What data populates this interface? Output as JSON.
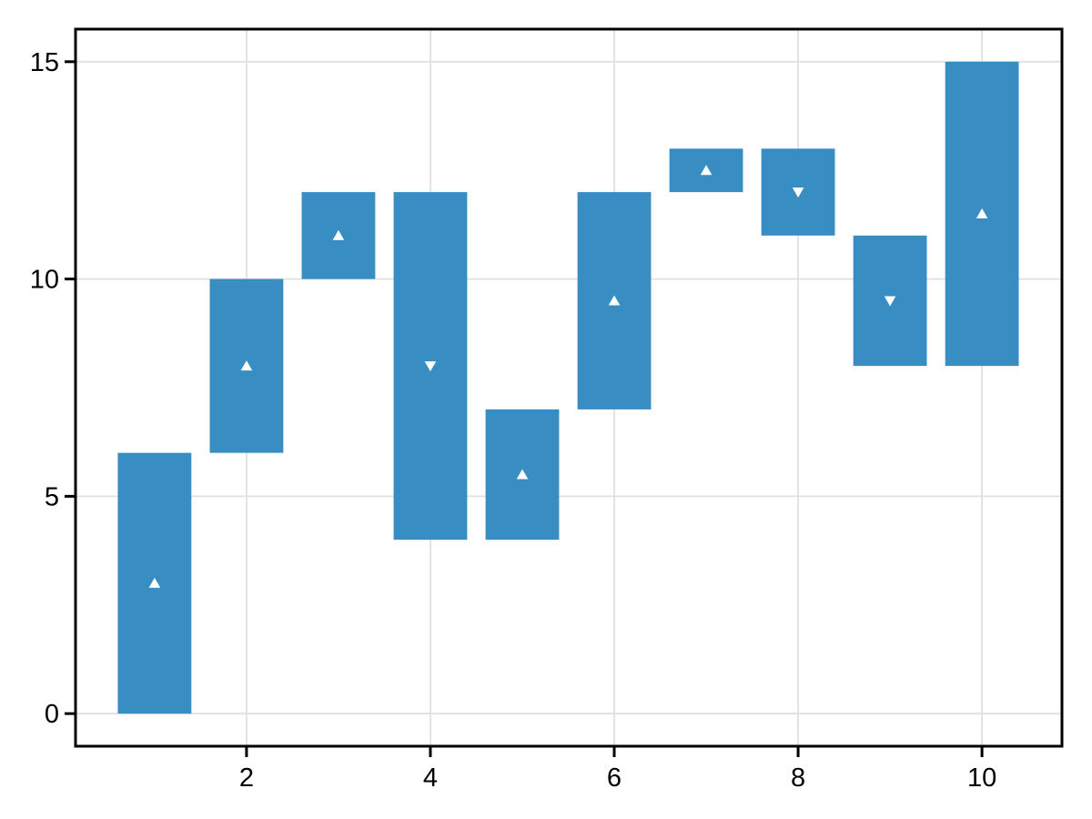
{
  "chart_data": {
    "type": "bar",
    "subtype": "floating-range-bars-with-direction-markers",
    "title": "",
    "xlabel": "",
    "ylabel": "",
    "bars": [
      {
        "x": 1,
        "low": 0,
        "high": 6,
        "marker_value": 3,
        "marker_direction": "up"
      },
      {
        "x": 2,
        "low": 6,
        "high": 10,
        "marker_value": 8,
        "marker_direction": "up"
      },
      {
        "x": 3,
        "low": 10,
        "high": 12,
        "marker_value": 11,
        "marker_direction": "up"
      },
      {
        "x": 4,
        "low": 4,
        "high": 12,
        "marker_value": 8,
        "marker_direction": "down"
      },
      {
        "x": 5,
        "low": 4,
        "high": 7,
        "marker_value": 5.5,
        "marker_direction": "up"
      },
      {
        "x": 6,
        "low": 7,
        "high": 12,
        "marker_value": 9.5,
        "marker_direction": "up"
      },
      {
        "x": 7,
        "low": 12,
        "high": 13,
        "marker_value": 12.5,
        "marker_direction": "up"
      },
      {
        "x": 8,
        "low": 11,
        "high": 13,
        "marker_value": 12,
        "marker_direction": "down"
      },
      {
        "x": 9,
        "low": 8,
        "high": 11,
        "marker_value": 9.5,
        "marker_direction": "down"
      },
      {
        "x": 10,
        "low": 8,
        "high": 15,
        "marker_value": 11.5,
        "marker_direction": "up"
      }
    ],
    "bar_width": 0.8,
    "x_ticks": {
      "values": [
        2,
        4,
        6,
        8,
        10
      ],
      "labels": [
        "2",
        "4",
        "6",
        "8",
        "10"
      ]
    },
    "y_ticks": {
      "values": [
        0,
        5,
        10,
        15
      ],
      "labels": [
        "0",
        "5",
        "10",
        "15"
      ]
    },
    "xlim": [
      0.14,
      10.87
    ],
    "ylim": [
      -0.75,
      15.75
    ],
    "grid": true,
    "legend": false,
    "colors": {
      "bar": "#388dc3",
      "marker": "#ffffff",
      "grid": "#e0e0e0",
      "spine": "#000000",
      "background": "#ffffff"
    }
  }
}
